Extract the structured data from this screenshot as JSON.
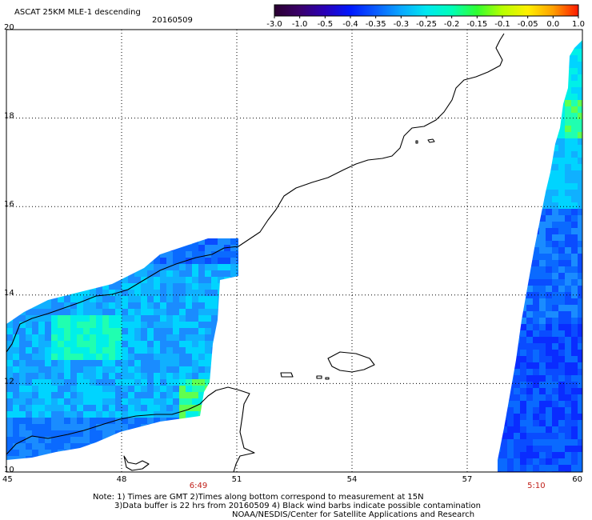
{
  "header": {
    "title": "ASCAT 25KM MLE-1 descending",
    "date": "20160509"
  },
  "colorbar": {
    "labels": [
      "-3.0",
      "-1.0",
      "-0.5",
      "-0.4",
      "-0.35",
      "-0.3",
      "-0.25",
      "-0.2",
      "-0.15",
      "-0.1",
      "-0.05",
      "0.0",
      "1.0"
    ],
    "colors": [
      "#2a0030",
      "#3a006a",
      "#2a00b8",
      "#0018ff",
      "#0a5cff",
      "#0aa8ff",
      "#00e8f0",
      "#00ffb8",
      "#30ff30",
      "#b8ff00",
      "#fff000",
      "#ffa000",
      "#ff1800"
    ]
  },
  "map": {
    "lon_labels": [
      "45",
      "48",
      "51",
      "54",
      "57",
      "60"
    ],
    "lat_labels": [
      "20",
      "18",
      "16",
      "14",
      "12",
      "10"
    ],
    "lon_range": [
      45,
      60
    ],
    "lat_range": [
      10,
      20
    ],
    "time_labels": [
      {
        "lon": 50.0,
        "text": "6:49"
      },
      {
        "lon": 58.8,
        "text": "5:10"
      }
    ],
    "grid": true,
    "colors": {
      "land_outline": "#000000",
      "grid": "#000000",
      "time_label": "#c0201a"
    }
  },
  "footer": {
    "line1": "Note: 1) Times are GMT 2)Times along bottom correspond to measurement at 15N",
    "line2": "3)Data buffer is 22 hrs from 20160509 4) Black wind barbs indicate possible contamination",
    "line3": "NOAA/NESDIS/Center for Satellite Applications and Research"
  }
}
